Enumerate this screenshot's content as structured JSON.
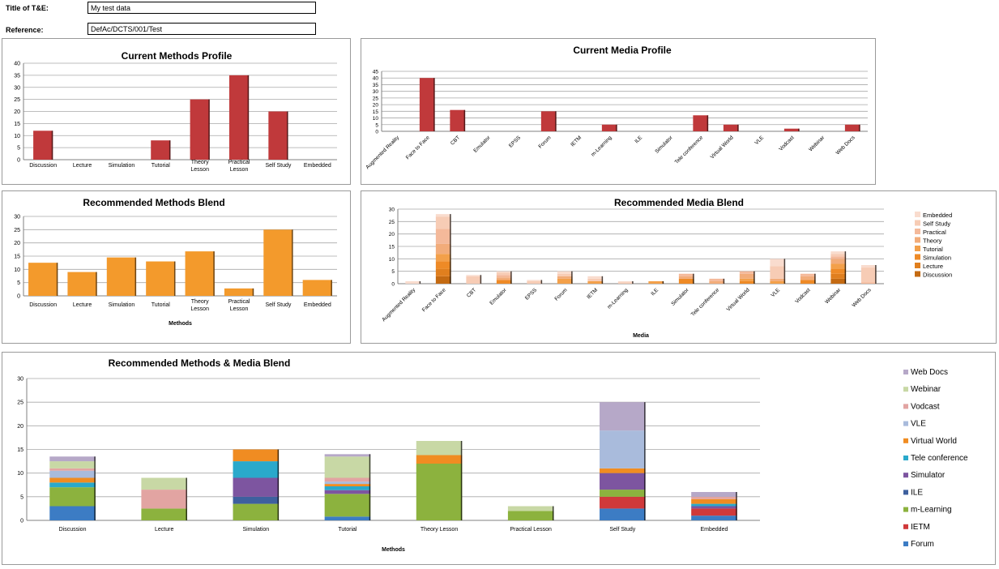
{
  "form": {
    "title_label": "Title of T&E:",
    "title_value": "My test data",
    "ref_label": "Reference:",
    "ref_value": "DefAc/DCTS/001/Test"
  },
  "colors": {
    "red": "#c0393b",
    "orange": "#f39a2c",
    "grid": "#a8a8a8",
    "axis": "#808080"
  },
  "chart_data": [
    {
      "id": "current-methods",
      "type": "bar",
      "title": "Current Methods Profile",
      "xlabel": "",
      "categories": [
        "Discussion",
        "Lecture",
        "Simulation",
        "Tutorial",
        "Theory Lesson",
        "Practical Lesson",
        "Self Study",
        "Embedded"
      ],
      "values": [
        12,
        0,
        0,
        8,
        25,
        35,
        20,
        0
      ],
      "ylim": [
        0,
        40
      ],
      "yticks": [
        0,
        5,
        10,
        15,
        20,
        25,
        30,
        35,
        40
      ],
      "color": "#c0393b",
      "grid": true
    },
    {
      "id": "current-media",
      "type": "bar",
      "title": "Current Media Profile",
      "xlabel": "",
      "categories": [
        "Augmented Reality",
        "Face to Face",
        "CBT",
        "Emulator",
        "EPSS",
        "Forum",
        "IETM",
        "m-Learning",
        "ILE",
        "Simulator",
        "Tele conference",
        "Virtual World",
        "VLE",
        "Vodcast",
        "Webinar",
        "Web Docs"
      ],
      "values": [
        0,
        40,
        16,
        0,
        0,
        15,
        0,
        5,
        0,
        0,
        12,
        5,
        0,
        2,
        0,
        5
      ],
      "ylim": [
        0,
        45
      ],
      "yticks": [
        0,
        5,
        10,
        15,
        20,
        25,
        30,
        35,
        40,
        45
      ],
      "color": "#c0393b",
      "grid": true
    },
    {
      "id": "recommended-methods",
      "type": "bar",
      "title": "Recommended Methods Blend",
      "xlabel": "Methods",
      "categories": [
        "Discussion",
        "Lecture",
        "Simulation",
        "Tutorial",
        "Theory Lesson",
        "Practical Lesson",
        "Self Study",
        "Embedded"
      ],
      "values": [
        12.5,
        9,
        14.5,
        13,
        16.8,
        2.8,
        25,
        6
      ],
      "ylim": [
        0,
        30
      ],
      "yticks": [
        0,
        5,
        10,
        15,
        20,
        25,
        30
      ],
      "color": "#f39a2c",
      "grid": true
    },
    {
      "id": "recommended-media",
      "type": "stacked-bar",
      "title": "Recommended Media  Blend",
      "xlabel": "Media",
      "categories": [
        "Augmented Reality",
        "Face to Face",
        "CBT",
        "Emulator",
        "EPSS",
        "Forum",
        "IETM",
        "m-Learning",
        "ILE",
        "Simulator",
        "Tele conference",
        "Virtual World",
        "VLE",
        "Vodcast",
        "Webinar",
        "Web Docs"
      ],
      "ylim": [
        0,
        30
      ],
      "yticks": [
        0,
        5,
        10,
        15,
        20,
        25,
        30
      ],
      "grid": true,
      "legend_position": "right",
      "series": [
        {
          "name": "Discussion",
          "color": "#c46a12",
          "values": [
            0,
            3,
            0,
            0,
            0,
            0,
            0,
            0,
            0,
            0,
            0,
            0,
            0,
            0,
            2,
            0
          ]
        },
        {
          "name": "Lecture",
          "color": "#e07f1e",
          "values": [
            0,
            3,
            0,
            0,
            0,
            0,
            0,
            0,
            0,
            0,
            0,
            0,
            0,
            0,
            2,
            0
          ]
        },
        {
          "name": "Simulation",
          "color": "#ee8a26",
          "values": [
            0,
            3,
            0,
            1.5,
            0,
            0,
            0,
            0,
            0,
            2,
            0,
            1,
            0,
            1.5,
            2,
            0
          ]
        },
        {
          "name": "Tutorial",
          "color": "#f3a04a",
          "values": [
            0,
            3,
            0,
            0,
            0,
            2,
            1,
            0,
            1,
            0,
            0,
            1,
            1,
            0,
            2,
            0
          ]
        },
        {
          "name": "Theory",
          "color": "#f2ac7a",
          "values": [
            0,
            4,
            0,
            1,
            0,
            1,
            0,
            0,
            0,
            1,
            1,
            2,
            1,
            1.5,
            2,
            0
          ]
        },
        {
          "name": "Practical",
          "color": "#f4b99a",
          "values": [
            0,
            6,
            0,
            1,
            0,
            0,
            0,
            0,
            0,
            1,
            1,
            1,
            0,
            1,
            1,
            0.5
          ]
        },
        {
          "name": "Self Study",
          "color": "#f7ccb5",
          "values": [
            0,
            5,
            3,
            1,
            1,
            1,
            1,
            0.5,
            0,
            0,
            0,
            0,
            5,
            0,
            1,
            6
          ]
        },
        {
          "name": "Embedded",
          "color": "#f9dcce",
          "values": [
            1,
            1,
            0.5,
            0.5,
            0.5,
            1,
            1,
            0.5,
            0,
            0,
            0,
            0,
            3,
            0,
            1,
            1
          ]
        }
      ],
      "legend_order": [
        "Embedded",
        "Self Study",
        "Practical",
        "Theory",
        "Tutorial",
        "Simulation",
        "Lecture",
        "Discussion"
      ]
    },
    {
      "id": "methods-media",
      "type": "stacked-bar",
      "title": "Recommended Methods  & Media Blend",
      "xlabel": "Methods",
      "categories": [
        "Discussion",
        "Lecture",
        "Simulation",
        "Tutorial",
        "Theory Lesson",
        "Practical Lesson",
        "Self Study",
        "Embedded"
      ],
      "ylim": [
        0,
        30
      ],
      "yticks": [
        0,
        5,
        10,
        15,
        20,
        25,
        30
      ],
      "grid": true,
      "legend_position": "right",
      "series": [
        {
          "name": "Forum",
          "color": "#3c7cc4",
          "values": [
            3,
            0,
            0,
            0.8,
            0,
            0,
            2.5,
            1
          ]
        },
        {
          "name": "IETM",
          "color": "#d0393a",
          "values": [
            0,
            0,
            0,
            0,
            0,
            0,
            2.5,
            1.5
          ]
        },
        {
          "name": "m-Learning",
          "color": "#8cb23e",
          "values": [
            4,
            2.5,
            3.5,
            4.8,
            12,
            2,
            1.5,
            0
          ]
        },
        {
          "name": "ILE",
          "color": "#3e609e",
          "values": [
            0,
            0,
            1.5,
            0,
            0,
            0,
            0,
            0
          ]
        },
        {
          "name": "Simulator",
          "color": "#7d55a0",
          "values": [
            0,
            0,
            4,
            0.8,
            0,
            0,
            3.5,
            0.5
          ]
        },
        {
          "name": "Tele conference",
          "color": "#2aa9cb",
          "values": [
            1,
            0,
            3.5,
            0.8,
            0,
            0,
            0,
            0.5
          ]
        },
        {
          "name": "Virtual World",
          "color": "#f08c22",
          "values": [
            1,
            0,
            2.5,
            0.5,
            1.8,
            0,
            1,
            1
          ]
        },
        {
          "name": "VLE",
          "color": "#a9bbdc",
          "values": [
            1.5,
            0,
            0,
            0.5,
            0,
            0,
            8,
            0
          ]
        },
        {
          "name": "Vodcast",
          "color": "#e2a4a2",
          "values": [
            0.5,
            4,
            0,
            0.8,
            0,
            0,
            0,
            0.5
          ]
        },
        {
          "name": "Webinar",
          "color": "#c8d8a5",
          "values": [
            1.5,
            2.5,
            0,
            4.5,
            3,
            1,
            0,
            0
          ]
        },
        {
          "name": "Web Docs",
          "color": "#b6a8c8",
          "values": [
            1,
            0,
            0,
            0.5,
            0,
            0,
            6,
            1
          ]
        }
      ],
      "legend_order": [
        "Web Docs",
        "Webinar",
        "Vodcast",
        "VLE",
        "Virtual World",
        "Tele conference",
        "Simulator",
        "ILE",
        "m-Learning",
        "IETM",
        "Forum"
      ]
    }
  ]
}
